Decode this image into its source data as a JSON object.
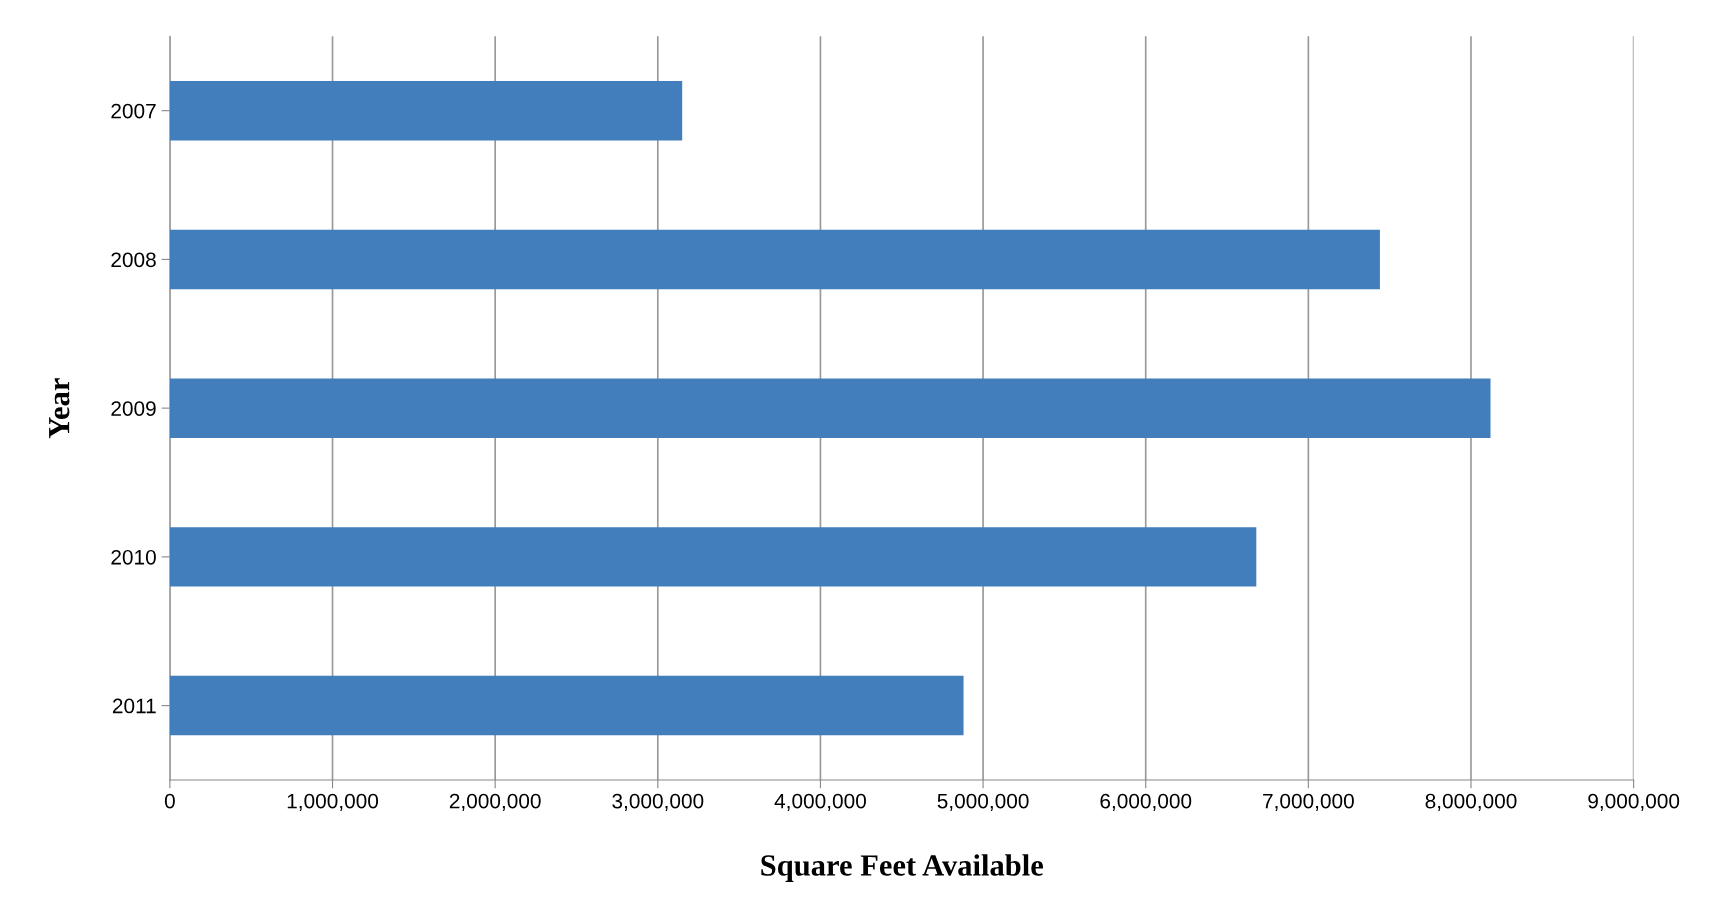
{
  "chart_data": {
    "type": "bar",
    "orientation": "horizontal",
    "xlabel": "Square Feet Available",
    "ylabel": "Year",
    "categories": [
      "2007",
      "2008",
      "2009",
      "2010",
      "2011"
    ],
    "values": [
      3150000,
      7440000,
      8120000,
      6680000,
      4880000
    ],
    "color": "#427ebb",
    "xlim": [
      0,
      9000000
    ],
    "xticks": [
      {
        "value": 0,
        "label": "0"
      },
      {
        "value": 1000000,
        "label": "1,000,000"
      },
      {
        "value": 2000000,
        "label": "2,000,000"
      },
      {
        "value": 3000000,
        "label": "3,000,000"
      },
      {
        "value": 4000000,
        "label": "4,000,000"
      },
      {
        "value": 5000000,
        "label": "5,000,000"
      },
      {
        "value": 6000000,
        "label": "6,000,000"
      },
      {
        "value": 7000000,
        "label": "7,000,000"
      },
      {
        "value": 8000000,
        "label": "8,000,000"
      },
      {
        "value": 9000000,
        "label": "9,000,000"
      }
    ],
    "grid": "x",
    "legend": false
  }
}
